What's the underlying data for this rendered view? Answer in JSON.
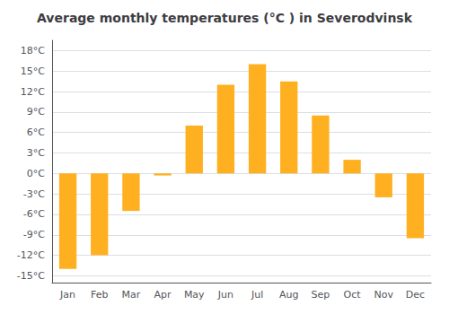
{
  "chart_data": {
    "type": "bar",
    "title": "Average monthly temperatures (°C ) in Severodvinsk",
    "categories": [
      "Jan",
      "Feb",
      "Mar",
      "Apr",
      "May",
      "Jun",
      "Jul",
      "Aug",
      "Sep",
      "Oct",
      "Nov",
      "Dec"
    ],
    "values": [
      -14.0,
      -12.0,
      -5.5,
      -0.3,
      7.0,
      13.0,
      16.0,
      13.5,
      8.5,
      2.0,
      -3.5,
      -9.5
    ],
    "color": "#FFB020",
    "ylim": [
      -16,
      19.5
    ],
    "yticks": [
      {
        "value": -15,
        "label": "-15°C"
      },
      {
        "value": -12,
        "label": "-12°C"
      },
      {
        "value": -9,
        "label": "-9°C"
      },
      {
        "value": -6,
        "label": "-6°C"
      },
      {
        "value": -3,
        "label": "-3°C"
      },
      {
        "value": 0,
        "label": "0°C"
      },
      {
        "value": 3,
        "label": "3°C"
      },
      {
        "value": 6,
        "label": "6°C"
      },
      {
        "value": 9,
        "label": "9°C"
      },
      {
        "value": 12,
        "label": "12°C"
      },
      {
        "value": 15,
        "label": "15°C"
      },
      {
        "value": 18,
        "label": "18°C"
      }
    ],
    "grid": true
  }
}
